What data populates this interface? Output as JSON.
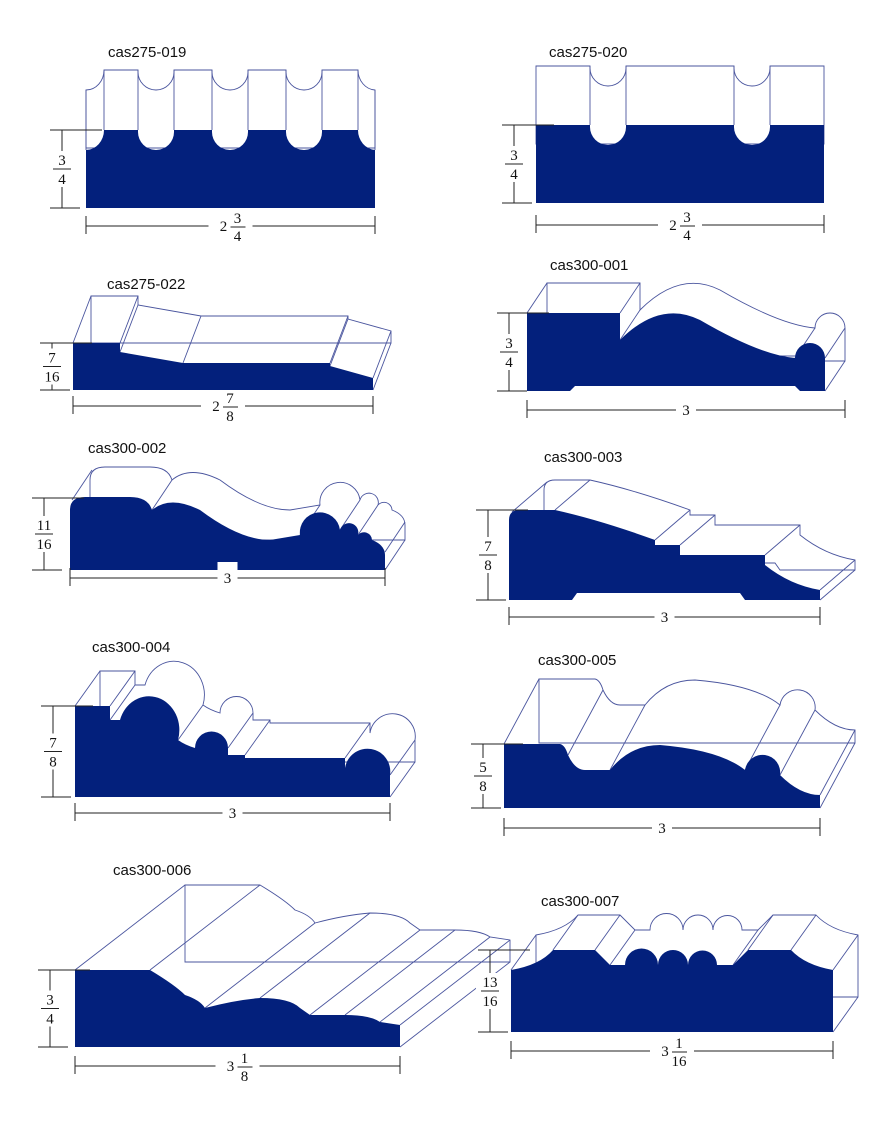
{
  "colors": {
    "profile_fill": "#03207c",
    "outline": "#4a559e",
    "dimension": "#222222"
  },
  "profiles": [
    {
      "name": "cas275-019",
      "height": {
        "whole": "",
        "num": "3",
        "den": "4"
      },
      "width": {
        "whole": "2",
        "num": "3",
        "den": "4"
      }
    },
    {
      "name": "cas275-020",
      "height": {
        "whole": "",
        "num": "3",
        "den": "4"
      },
      "width": {
        "whole": "2",
        "num": "3",
        "den": "4"
      }
    },
    {
      "name": "cas275-022",
      "height": {
        "whole": "",
        "num": "7",
        "den": "16"
      },
      "width": {
        "whole": "2",
        "num": "7",
        "den": "8"
      }
    },
    {
      "name": "cas300-001",
      "height": {
        "whole": "",
        "num": "3",
        "den": "4"
      },
      "width": {
        "whole": "3",
        "num": "",
        "den": ""
      }
    },
    {
      "name": "cas300-002",
      "height": {
        "whole": "",
        "num": "11",
        "den": "16"
      },
      "width": {
        "whole": "3",
        "num": "",
        "den": ""
      }
    },
    {
      "name": "cas300-003",
      "height": {
        "whole": "",
        "num": "7",
        "den": "8"
      },
      "width": {
        "whole": "3",
        "num": "",
        "den": ""
      }
    },
    {
      "name": "cas300-004",
      "height": {
        "whole": "",
        "num": "7",
        "den": "8"
      },
      "width": {
        "whole": "3",
        "num": "",
        "den": ""
      }
    },
    {
      "name": "cas300-005",
      "height": {
        "whole": "",
        "num": "5",
        "den": "8"
      },
      "width": {
        "whole": "3",
        "num": "",
        "den": ""
      }
    },
    {
      "name": "cas300-006",
      "height": {
        "whole": "",
        "num": "3",
        "den": "4"
      },
      "width": {
        "whole": "3",
        "num": "1",
        "den": "8"
      }
    },
    {
      "name": "cas300-007",
      "height": {
        "whole": "",
        "num": "13",
        "den": "16"
      },
      "width": {
        "whole": "3",
        "num": "1",
        "den": "16"
      }
    }
  ]
}
